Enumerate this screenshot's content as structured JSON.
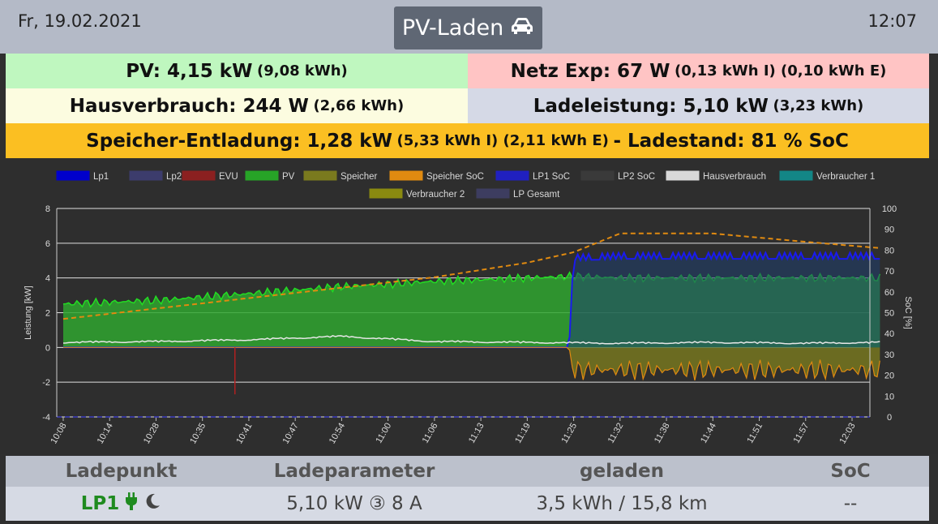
{
  "header": {
    "date": "Fr, 19.02.2021",
    "title": "PV-Laden",
    "time": "12:07",
    "car_icon": "car-icon"
  },
  "status": {
    "pv_label": "PV: 4,15 kW",
    "pv_energy": "(9,08 kWh)",
    "netz_label": "Netz Exp: 67 W",
    "netz_energy": "(0,13 kWh I) (0,10 kWh E)",
    "haus_label": "Hausverbrauch: 244 W",
    "haus_energy": "(2,66 kWh)",
    "lade_label": "Ladeleistung: 5,10 kW",
    "lade_energy": "(3,23 kWh)",
    "speicher_label": "Speicher-Entladung: 1,28 kW",
    "speicher_energy": "(5,33 kWh I) (2,11 kWh E)",
    "ladestand_label": "- Ladestand: 81 % SoC",
    "colors": {
      "pv": "#bff7bf",
      "netz": "#ffc4c4",
      "haus": "#fcfce0",
      "lade": "#d5d9e6",
      "speicher": "#fbbf22"
    }
  },
  "chart_data": {
    "type": "line",
    "ylabel": "Leistung [kW]",
    "y2label": "SoC [%]",
    "ylim": [
      -4,
      8
    ],
    "yticks": [
      "8",
      "6",
      "4",
      "2",
      "0",
      "-2",
      "-4"
    ],
    "y2lim": [
      0,
      100
    ],
    "y2ticks": [
      "100",
      "90",
      "80",
      "70",
      "60",
      "50",
      "40",
      "30",
      "20",
      "10",
      "0"
    ],
    "x_labels": [
      "10:08",
      "10:14",
      "10:28",
      "10:35",
      "10:41",
      "10:47",
      "10:54",
      "11:00",
      "11:06",
      "11:13",
      "11:19",
      "11:25",
      "11:32",
      "11:38",
      "11:44",
      "11:51",
      "11:57",
      "12:03"
    ],
    "legend": [
      {
        "name": "Lp1",
        "color": "#0000cc"
      },
      {
        "name": "Lp2",
        "color": "#3c3c6c"
      },
      {
        "name": "EVU",
        "color": "#8b2020"
      },
      {
        "name": "PV",
        "color": "#27a427"
      },
      {
        "name": "Speicher",
        "color": "#7a7a1e"
      },
      {
        "name": "Speicher SoC",
        "color": "#e08a10"
      },
      {
        "name": "LP1 SoC",
        "color": "#2020c0"
      },
      {
        "name": "LP2 SoC",
        "color": "#3a3a3a"
      },
      {
        "name": "Hausverbrauch",
        "color": "#d8d8d8"
      },
      {
        "name": "Verbraucher 1",
        "color": "#138686"
      },
      {
        "name": "Verbraucher 2",
        "color": "#8a8a10"
      },
      {
        "name": "LP Gesamt",
        "color": "#3d3d60"
      }
    ],
    "series": [
      {
        "name": "PV",
        "x_index": [
          0,
          2,
          4,
          6,
          8,
          10,
          11,
          12,
          14,
          16,
          17.6
        ],
        "values": [
          2.5,
          2.7,
          3.1,
          3.5,
          3.8,
          4.0,
          4.1,
          4.0,
          4.0,
          4.0,
          4.0
        ]
      },
      {
        "name": "Speicher SoC",
        "x_index": [
          0,
          2,
          4,
          6,
          8,
          10,
          11,
          12,
          14,
          16,
          17.6
        ],
        "values": [
          47,
          52,
          57,
          62,
          67,
          74,
          79,
          88,
          88,
          84,
          81
        ]
      },
      {
        "name": "Lp1",
        "x_index": [
          0,
          10.9,
          11.0,
          12,
          14,
          16,
          17.6
        ],
        "values": [
          0,
          0,
          5.0,
          5.1,
          5.1,
          5.1,
          5.1
        ]
      },
      {
        "name": "Speicher",
        "x_index": [
          0,
          10.9,
          11.0,
          12,
          14,
          16,
          17.6
        ],
        "values": [
          0,
          0,
          -1.3,
          -1.3,
          -1.3,
          -1.3,
          -1.3
        ]
      },
      {
        "name": "Hausverbrauch",
        "x_index": [
          0,
          2,
          4,
          6,
          8,
          10,
          12,
          14,
          16,
          17.6
        ],
        "values": [
          0.25,
          0.3,
          0.4,
          0.6,
          0.3,
          0.25,
          0.2,
          0.25,
          0.2,
          0.25
        ]
      }
    ]
  },
  "table": {
    "headers": [
      "Ladepunkt",
      "Ladeparameter",
      "geladen",
      "SoC"
    ],
    "row": {
      "lp": "LP1",
      "params": "5,10 kW ③ 8 A",
      "geladen": "3,5 kWh / 15,8 km",
      "soc": "--"
    }
  }
}
